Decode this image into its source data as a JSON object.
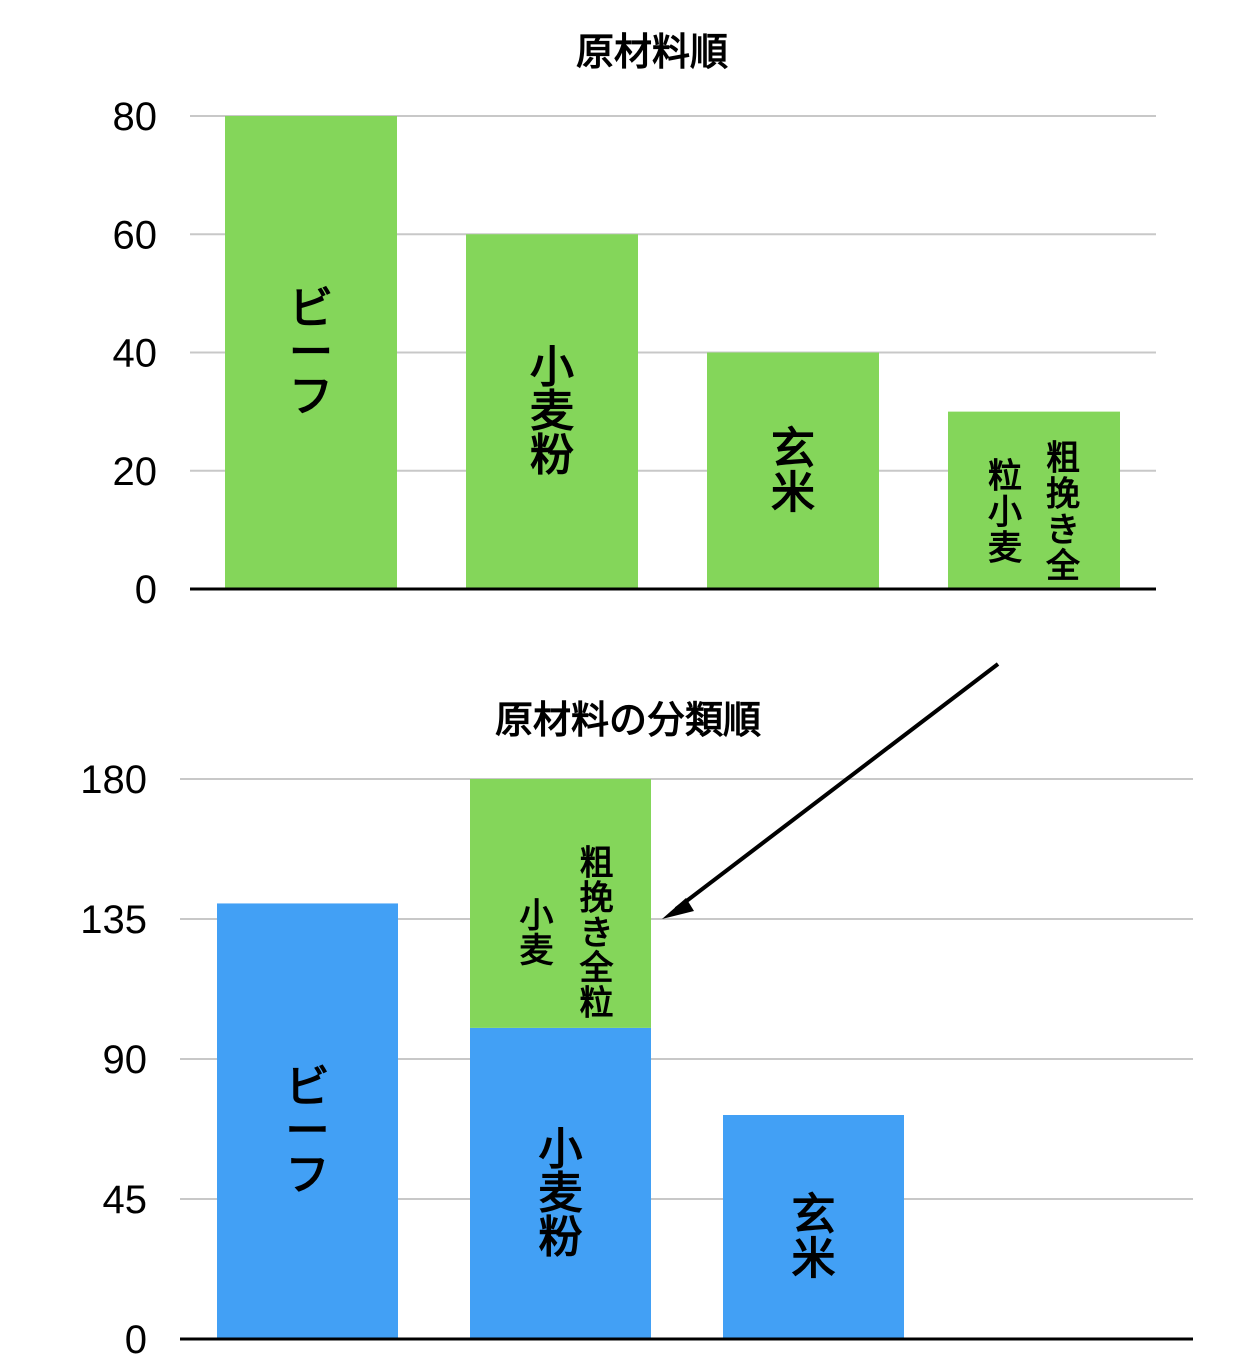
{
  "chart_data": [
    {
      "type": "bar",
      "title": "原材料順",
      "xlabel": "",
      "ylabel": "",
      "ylim": [
        0,
        80
      ],
      "yticks": [
        "0",
        "20",
        "40",
        "60",
        "80"
      ],
      "grid": true,
      "color": "#84d65a",
      "categories": [
        "ビーフ",
        "小麦粉",
        "玄米",
        "粗挽き全粒小麦"
      ],
      "values": [
        80,
        60,
        40,
        30
      ],
      "bar_labels": [
        [
          "ビーフ"
        ],
        [
          "小麦粉"
        ],
        [
          "玄米"
        ],
        [
          "粗挽き全",
          "粒小麦"
        ]
      ]
    },
    {
      "type": "bar",
      "stacked": true,
      "title": "原材料の分類順",
      "xlabel": "",
      "ylabel": "",
      "ylim": [
        0,
        180
      ],
      "yticks": [
        "0",
        "45",
        "90",
        "135",
        "180"
      ],
      "grid": true,
      "categories": [
        "ビーフ",
        "小麦",
        "玄米"
      ],
      "series": [
        {
          "color": "#42a0f5",
          "values": [
            140,
            100,
            72
          ],
          "labels": [
            [
              "ビーフ"
            ],
            [
              "小麦粉"
            ],
            [
              "玄米"
            ]
          ]
        },
        {
          "color": "#84d65a",
          "values": [
            0,
            80,
            0
          ],
          "labels": [
            [],
            [
              "粗挽き全粒",
              "小麦"
            ],
            []
          ]
        }
      ],
      "annotation": "arrow"
    }
  ]
}
